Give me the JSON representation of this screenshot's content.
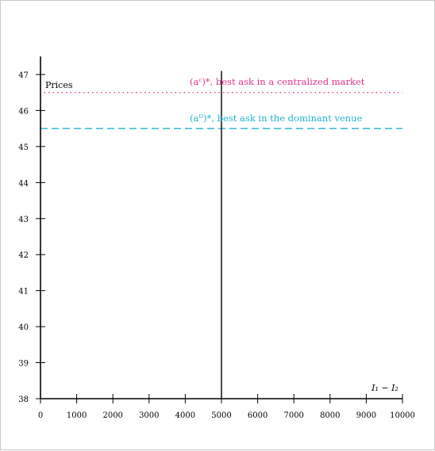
{
  "chart_data": {
    "type": "line",
    "title": "",
    "xlabel": "I₁ − I₂",
    "ylabel": "Prices",
    "xlim": [
      0,
      10000
    ],
    "ylim": [
      38,
      47.5
    ],
    "x_ticks": [
      0,
      1000,
      2000,
      3000,
      4000,
      5000,
      6000,
      7000,
      8000,
      9000,
      10000
    ],
    "y_ticks": [
      38,
      39,
      40,
      41,
      42,
      43,
      44,
      45,
      46,
      47
    ],
    "grid": false,
    "lines": [
      {
        "orientation": "horizontal",
        "y": 46.5,
        "x_range": [
          100,
          10000
        ],
        "style": "dotted",
        "color": "#e0338f",
        "label": "(aᶜ)*, best ask in a centralized market"
      },
      {
        "orientation": "horizontal",
        "y": 45.5,
        "x_range": [
          0,
          10000
        ],
        "style": "dashed",
        "color": "#1fb3d1",
        "label": "(aᴰ)*, best ask in the dominant venue"
      },
      {
        "orientation": "vertical",
        "x": 5000,
        "y_range": [
          38,
          47.1
        ],
        "style": "solid",
        "color": "#000000"
      }
    ]
  }
}
